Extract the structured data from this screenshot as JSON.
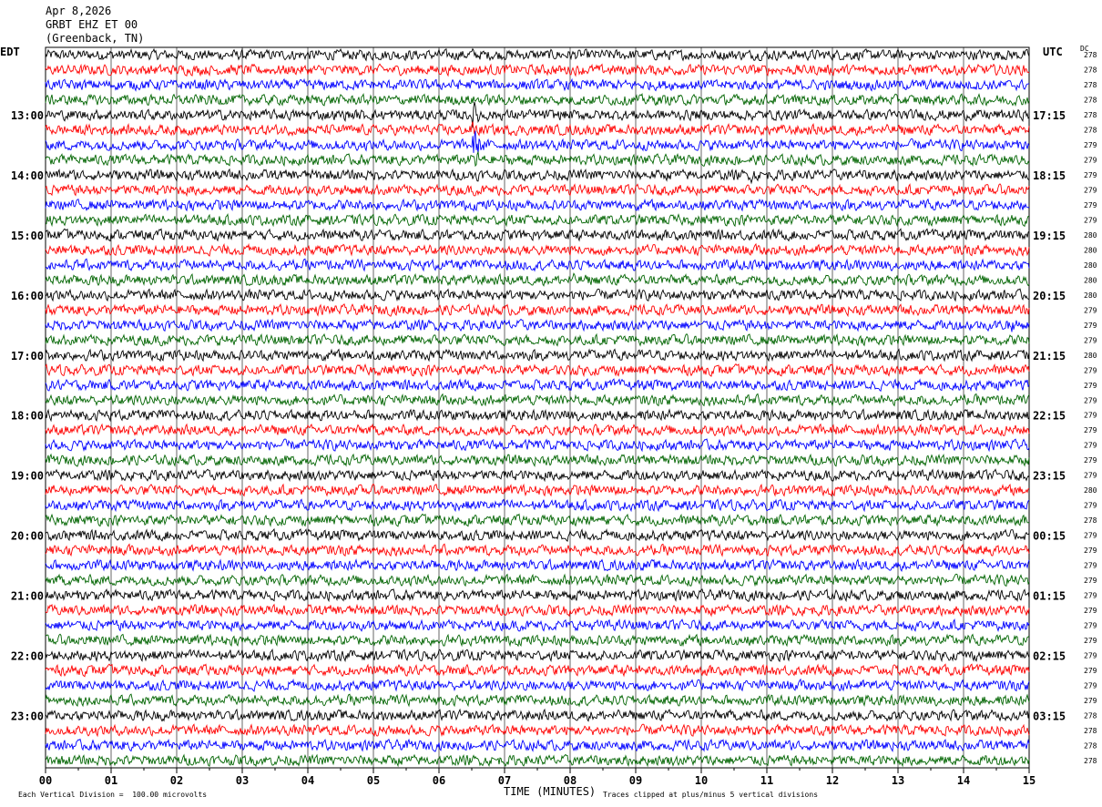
{
  "header": {
    "date": "Apr 8,2026",
    "station": "GRBT EHZ ET 00",
    "location": "(Greenback, TN)"
  },
  "labels": {
    "left_tz": "EDT",
    "right_tz": "UTC",
    "dc": "DC",
    "x_axis_title": "TIME (MINUTES)",
    "scale_note": "Each Vertical Division =  100.00 microvolts",
    "clip_note": "Traces clipped at plus/minus 5 vertical divisions"
  },
  "colors": {
    "trace_cycle": [
      "#000000",
      "#ff0000",
      "#0000ff",
      "#006400"
    ],
    "grid": "#000000"
  },
  "chart_data": {
    "type": "line",
    "title": "GRBT EHZ ET 00",
    "xlabel": "TIME (MINUTES)",
    "xlim": [
      0,
      15
    ],
    "x_ticks": [
      "00",
      "01",
      "02",
      "03",
      "04",
      "05",
      "06",
      "07",
      "08",
      "09",
      "10",
      "11",
      "12",
      "13",
      "14",
      "15"
    ],
    "left_hour_labels": [
      "13:00",
      "14:00",
      "15:00",
      "16:00",
      "17:00",
      "18:00",
      "19:00",
      "20:00",
      "21:00",
      "22:00",
      "23:00"
    ],
    "right_hour_labels": [
      "17:15",
      "18:15",
      "19:15",
      "20:15",
      "21:15",
      "22:15",
      "23:15",
      "00:15",
      "01:15",
      "02:15",
      "03:15"
    ],
    "rows_per_hour": 4,
    "first_hour_row_index": 4,
    "dc_offsets": [
      278,
      278,
      278,
      278,
      278,
      278,
      279,
      279,
      279,
      279,
      279,
      279,
      280,
      280,
      280,
      280,
      280,
      279,
      279,
      279,
      280,
      279,
      279,
      279,
      279,
      279,
      279,
      279,
      279,
      280,
      279,
      278,
      279,
      279,
      279,
      279,
      279,
      279,
      279,
      279,
      279,
      279,
      279,
      279,
      278,
      278,
      278,
      278
    ],
    "events": [
      {
        "row": 0,
        "minute": 6.5,
        "amp": 1.4
      },
      {
        "row": 4,
        "minute": 6.55,
        "amp": 2.6
      },
      {
        "row": 5,
        "minute": 6.55,
        "amp": 1.8
      },
      {
        "row": 6,
        "minute": 6.55,
        "amp": 3.0
      },
      {
        "row": 7,
        "minute": 6.55,
        "amp": 2.2
      },
      {
        "row": 8,
        "minute": 10.8,
        "amp": 1.5
      },
      {
        "row": 8,
        "minute": 6.55,
        "amp": 1.4
      },
      {
        "row": 15,
        "minute": 8.1,
        "amp": 1.2
      },
      {
        "row": 18,
        "minute": 14.7,
        "amp": 1.8
      }
    ]
  }
}
